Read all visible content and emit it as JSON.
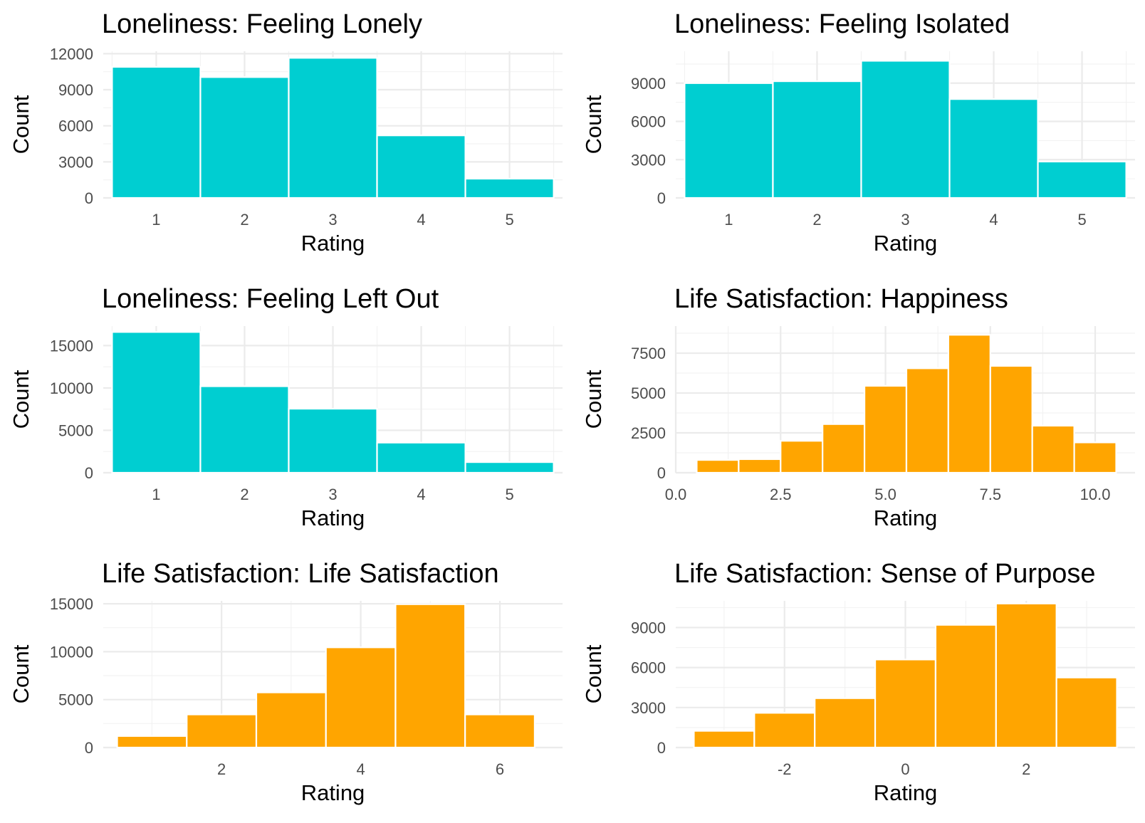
{
  "colors": {
    "loneliness": "#00CED1",
    "life_satisfaction": "#FFA500"
  },
  "chart_data": [
    {
      "type": "bar",
      "title": "Loneliness: Feeling Lonely",
      "xlabel": "Rating",
      "ylabel": "Count",
      "color": "#00CED1",
      "bins": [
        1,
        2,
        3,
        4,
        5
      ],
      "bin_width": 1,
      "values": [
        10900,
        10050,
        11650,
        5200,
        1600
      ],
      "xlim": [
        0.4,
        5.6
      ],
      "ylim": [
        0,
        12200
      ],
      "xticks": [
        1,
        2,
        3,
        4,
        5
      ],
      "xtick_labels": [
        "1",
        "2",
        "3",
        "4",
        "5"
      ],
      "yticks": [
        0,
        3000,
        6000,
        9000,
        12000
      ],
      "ytick_labels": [
        "0",
        "3000",
        "6000",
        "9000",
        "12000"
      ],
      "grid": true
    },
    {
      "type": "bar",
      "title": "Loneliness: Feeling Isolated",
      "xlabel": "Rating",
      "ylabel": "Count",
      "color": "#00CED1",
      "bins": [
        1,
        2,
        3,
        4,
        5
      ],
      "bin_width": 1,
      "values": [
        9000,
        9150,
        10750,
        7750,
        2850
      ],
      "xlim": [
        0.4,
        5.6
      ],
      "ylim": [
        0,
        11500
      ],
      "xticks": [
        1,
        2,
        3,
        4,
        5
      ],
      "xtick_labels": [
        "1",
        "2",
        "3",
        "4",
        "5"
      ],
      "yticks": [
        0,
        3000,
        6000,
        9000
      ],
      "ytick_labels": [
        "0",
        "3000",
        "6000",
        "9000"
      ],
      "grid": true
    },
    {
      "type": "bar",
      "title": "Loneliness: Feeling Left Out",
      "xlabel": "Rating",
      "ylabel": "Count",
      "color": "#00CED1",
      "bins": [
        1,
        2,
        3,
        4,
        5
      ],
      "bin_width": 1,
      "values": [
        16600,
        10200,
        7550,
        3550,
        1250
      ],
      "xlim": [
        0.4,
        5.6
      ],
      "ylim": [
        0,
        17300
      ],
      "xticks": [
        1,
        2,
        3,
        4,
        5
      ],
      "xtick_labels": [
        "1",
        "2",
        "3",
        "4",
        "5"
      ],
      "yticks": [
        0,
        5000,
        10000,
        15000
      ],
      "ytick_labels": [
        "0",
        "5000",
        "10000",
        "15000"
      ],
      "grid": true
    },
    {
      "type": "bar",
      "title": "Life Satisfaction: Happiness",
      "xlabel": "Rating",
      "ylabel": "Count",
      "color": "#FFA500",
      "bins": [
        1,
        2,
        3,
        4,
        5,
        6,
        7,
        8,
        9,
        10
      ],
      "bin_width": 1,
      "values": [
        800,
        850,
        2000,
        3050,
        5450,
        6550,
        8650,
        6700,
        2950,
        1900
      ],
      "xlim": [
        0,
        10.95
      ],
      "ylim": [
        0,
        9200
      ],
      "xticks": [
        0,
        2.5,
        5,
        7.5,
        10
      ],
      "xtick_labels": [
        "0.0",
        "2.5",
        "5.0",
        "7.5",
        "10.0"
      ],
      "yticks": [
        0,
        2500,
        5000,
        7500
      ],
      "ytick_labels": [
        "0",
        "2500",
        "5000",
        "7500"
      ],
      "grid": true
    },
    {
      "type": "bar",
      "title": "Life Satisfaction: Life Satisfaction",
      "xlabel": "Rating",
      "ylabel": "Count",
      "color": "#FFA500",
      "bins": [
        1,
        2,
        3,
        4,
        5,
        6
      ],
      "bin_width": 1,
      "values": [
        1200,
        3450,
        5750,
        10450,
        14950,
        3450
      ],
      "xlim": [
        0.3,
        6.9
      ],
      "ylim": [
        0,
        15300
      ],
      "xticks": [
        2,
        4,
        6
      ],
      "xtick_labels": [
        "2",
        "4",
        "6"
      ],
      "yticks": [
        0,
        5000,
        10000,
        15000
      ],
      "ytick_labels": [
        "0",
        "5000",
        "10000",
        "15000"
      ],
      "grid": true
    },
    {
      "type": "bar",
      "title": "Life Satisfaction: Sense of Purpose",
      "xlabel": "Rating",
      "ylabel": "Count",
      "color": "#FFA500",
      "bins": [
        -3,
        -2,
        -1,
        0,
        1,
        2,
        3
      ],
      "bin_width": 1,
      "values": [
        1250,
        2600,
        3700,
        6600,
        9200,
        10800,
        5250
      ],
      "xlim": [
        -3.8,
        3.8
      ],
      "ylim": [
        0,
        11000
      ],
      "xticks": [
        -2,
        0,
        2
      ],
      "xtick_labels": [
        "-2",
        "0",
        "2"
      ],
      "yticks": [
        0,
        3000,
        6000,
        9000
      ],
      "ytick_labels": [
        "0",
        "3000",
        "6000",
        "9000"
      ],
      "grid": true
    }
  ]
}
